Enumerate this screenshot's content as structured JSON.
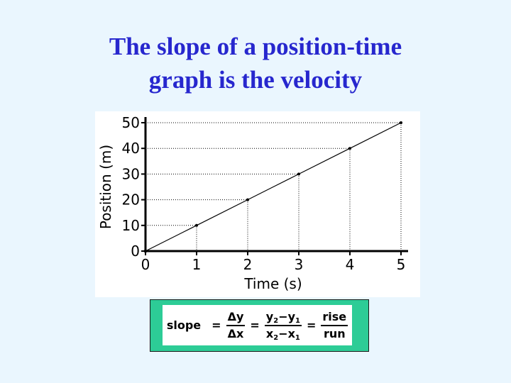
{
  "slide": {
    "title_line1": "The slope of a position-time",
    "title_line2": "graph is the velocity",
    "title_color": "#2727ce",
    "background_color": "#eaf6fe"
  },
  "chart_data": {
    "type": "line",
    "title": "",
    "xlabel": "Time (s)",
    "ylabel": "Position (m)",
    "x": [
      0,
      1,
      2,
      3,
      4,
      5
    ],
    "series": [
      {
        "values": [
          0,
          10,
          20,
          30,
          40,
          50
        ]
      }
    ],
    "xlim": [
      0,
      5
    ],
    "ylim": [
      0,
      50
    ],
    "x_ticks": [
      0,
      1,
      2,
      3,
      4,
      5
    ],
    "y_ticks": [
      0,
      10,
      20,
      30,
      40,
      50
    ],
    "x_tick_labels": [
      "0",
      "1",
      "2",
      "3",
      "4",
      "5"
    ],
    "y_tick_labels": [
      "0",
      "10",
      "20",
      "30",
      "40",
      "50"
    ],
    "grid": "dotted drop lines from each point to both axes",
    "legend": "none"
  },
  "formula": {
    "word": "slope",
    "eq1": "=",
    "f1_num": "Δy",
    "f1_den": "Δx",
    "eq2": "=",
    "f2_num_a": "y",
    "f2_num_a_sub": "2",
    "f2_num_minus": "−",
    "f2_num_b": "y",
    "f2_num_b_sub": "1",
    "f2_den_a": "x",
    "f2_den_a_sub": "2",
    "f2_den_minus": "−",
    "f2_den_b": "x",
    "f2_den_b_sub": "1",
    "eq3": "=",
    "f3_num": "rise",
    "f3_den": "run",
    "box_color": "#2dcc96"
  }
}
